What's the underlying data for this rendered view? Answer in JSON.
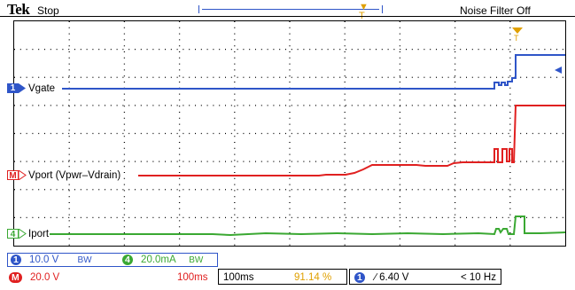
{
  "top": {
    "brand": "Tek",
    "status": "Stop",
    "noise_filter": "Noise Filter Off"
  },
  "channels": {
    "ch1": {
      "tag": "1",
      "label": "Vgate",
      "color": "#2f55c8"
    },
    "math": {
      "tag": "M",
      "label": "Vport (Vpwr–Vdrain)",
      "color": "#e02020"
    },
    "ref4": {
      "tag": "4",
      "label": "Iport",
      "color": "#3aa832"
    }
  },
  "readouts": {
    "ch1_tag": "1",
    "ch1_scale": "10.0 V",
    "ch1_bw": "BW",
    "ch4_tag": "4",
    "ch4_scale": "20.0mA",
    "ch4_bw": "BW",
    "math_tag": "M",
    "math_scale": "20.0 V",
    "math_time": "100ms",
    "timebase": "100ms",
    "trigger_pos": "91.14 %",
    "trig_source_tag": "1",
    "trig_level": "∕ 6.40 V",
    "trig_freq": "< 10 Hz"
  }
}
